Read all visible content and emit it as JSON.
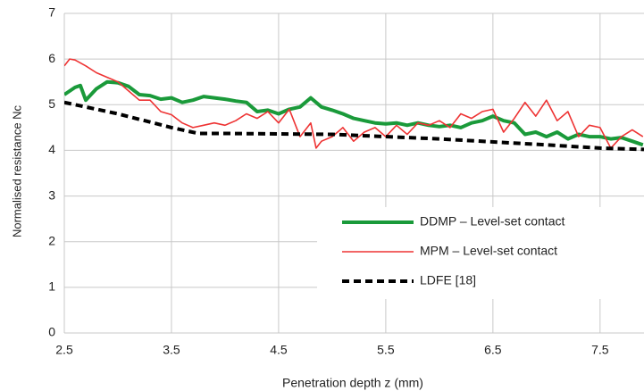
{
  "chart_data": {
    "type": "line",
    "x_label": "Penetration depth z (mm)",
    "y_label": "Normalised resistance Nc",
    "xlim": [
      2.5,
      7.91
    ],
    "xticks": [
      2.5,
      3.5,
      4.5,
      5.5,
      6.5,
      7.5
    ],
    "ylim": [
      0,
      7
    ],
    "yticks": [
      0,
      1,
      2,
      3,
      4,
      5,
      6,
      7
    ],
    "grid": true,
    "legend": "lower right",
    "series": [
      {
        "name": "DDMP – Level-set contact",
        "color": "#1a9a3a",
        "width": 4,
        "dash": "solid",
        "x": [
          2.5,
          2.6,
          2.65,
          2.7,
          2.8,
          2.9,
          3.0,
          3.1,
          3.2,
          3.3,
          3.4,
          3.5,
          3.6,
          3.7,
          3.8,
          3.9,
          4.0,
          4.1,
          4.2,
          4.3,
          4.4,
          4.5,
          4.6,
          4.7,
          4.8,
          4.9,
          5.0,
          5.1,
          5.2,
          5.3,
          5.4,
          5.5,
          5.6,
          5.7,
          5.8,
          5.9,
          6.0,
          6.1,
          6.2,
          6.3,
          6.4,
          6.5,
          6.6,
          6.7,
          6.8,
          6.9,
          7.0,
          7.1,
          7.2,
          7.3,
          7.4,
          7.5,
          7.6,
          7.7,
          7.8,
          7.9
        ],
        "values": [
          5.22,
          5.38,
          5.42,
          5.1,
          5.35,
          5.5,
          5.48,
          5.4,
          5.22,
          5.2,
          5.12,
          5.15,
          5.05,
          5.1,
          5.18,
          5.15,
          5.12,
          5.08,
          5.05,
          4.85,
          4.88,
          4.8,
          4.9,
          4.95,
          5.15,
          4.95,
          4.88,
          4.8,
          4.7,
          4.65,
          4.6,
          4.58,
          4.6,
          4.55,
          4.6,
          4.55,
          4.52,
          4.55,
          4.5,
          4.6,
          4.65,
          4.75,
          4.65,
          4.6,
          4.35,
          4.4,
          4.3,
          4.4,
          4.25,
          4.35,
          4.3,
          4.3,
          4.25,
          4.28,
          4.2,
          4.12
        ]
      },
      {
        "name": "MPM – Level-set contact",
        "color": "#ee3333",
        "width": 1.6,
        "dash": "solid",
        "x": [
          2.5,
          2.55,
          2.6,
          2.7,
          2.8,
          2.9,
          3.0,
          3.1,
          3.2,
          3.3,
          3.4,
          3.5,
          3.6,
          3.7,
          3.8,
          3.9,
          4.0,
          4.1,
          4.2,
          4.3,
          4.4,
          4.5,
          4.6,
          4.7,
          4.8,
          4.85,
          4.9,
          5.0,
          5.1,
          5.2,
          5.3,
          5.4,
          5.5,
          5.6,
          5.7,
          5.8,
          5.9,
          6.0,
          6.1,
          6.2,
          6.3,
          6.4,
          6.5,
          6.6,
          6.7,
          6.8,
          6.9,
          7.0,
          7.1,
          7.2,
          7.3,
          7.4,
          7.5,
          7.6,
          7.7,
          7.8,
          7.9
        ],
        "values": [
          5.85,
          6.0,
          5.98,
          5.85,
          5.7,
          5.6,
          5.5,
          5.3,
          5.1,
          5.1,
          4.85,
          4.78,
          4.6,
          4.5,
          4.55,
          4.6,
          4.55,
          4.65,
          4.8,
          4.7,
          4.85,
          4.6,
          4.9,
          4.3,
          4.6,
          4.05,
          4.2,
          4.3,
          4.5,
          4.2,
          4.4,
          4.5,
          4.3,
          4.55,
          4.35,
          4.6,
          4.55,
          4.65,
          4.5,
          4.8,
          4.7,
          4.85,
          4.9,
          4.4,
          4.7,
          5.05,
          4.75,
          5.1,
          4.65,
          4.85,
          4.3,
          4.55,
          4.5,
          4.05,
          4.3,
          4.45,
          4.3
        ]
      },
      {
        "name": "LDFE [18]",
        "color": "#000000",
        "width": 4,
        "dash": "dashed",
        "x": [
          2.5,
          3.0,
          3.5,
          3.75,
          4.0,
          5.0,
          6.0,
          7.0,
          7.5,
          7.91
        ],
        "values": [
          5.05,
          4.8,
          4.5,
          4.37,
          4.37,
          4.35,
          4.25,
          4.12,
          4.05,
          4.02
        ]
      }
    ]
  }
}
